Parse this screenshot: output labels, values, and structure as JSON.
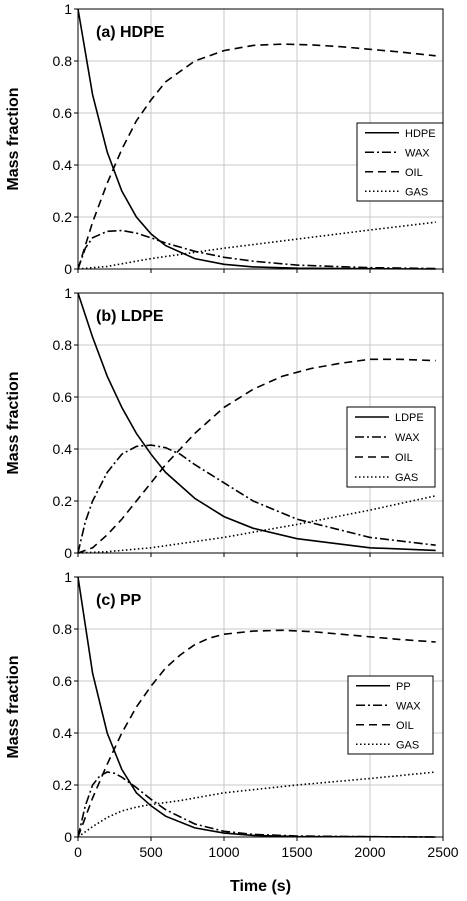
{
  "chart_data": [
    {
      "type": "line",
      "title": "(a) HDPE",
      "ylabel": "Mass fraction",
      "xlabel": "",
      "xlim": [
        0,
        2500
      ],
      "ylim": [
        0,
        1
      ],
      "xticks": [
        0,
        500,
        1000,
        1500,
        2000,
        2500
      ],
      "yticks": [
        0,
        0.2,
        0.4,
        0.6,
        0.8,
        1
      ],
      "ytick_labels": [
        "0",
        "0.2",
        "0.4",
        "0.6",
        "0.8",
        "1"
      ],
      "grid": true,
      "legend_position": "middle-right",
      "series": [
        {
          "name": "HDPE",
          "style": "solid",
          "x": [
            0,
            100,
            200,
            300,
            400,
            500,
            600,
            800,
            1000,
            1200,
            1500,
            2000,
            2450
          ],
          "y": [
            1.0,
            0.67,
            0.45,
            0.3,
            0.2,
            0.135,
            0.09,
            0.04,
            0.018,
            0.008,
            0.003,
            0.001,
            0.0
          ]
        },
        {
          "name": "WAX",
          "style": "dashdot",
          "x": [
            0,
            50,
            100,
            200,
            300,
            400,
            500,
            600,
            800,
            1000,
            1200,
            1500,
            2000,
            2450
          ],
          "y": [
            0.0,
            0.08,
            0.12,
            0.145,
            0.148,
            0.138,
            0.12,
            0.1,
            0.068,
            0.045,
            0.03,
            0.015,
            0.005,
            0.002
          ]
        },
        {
          "name": "OIL",
          "style": "dashed",
          "x": [
            0,
            100,
            200,
            300,
            400,
            500,
            600,
            700,
            800,
            1000,
            1200,
            1400,
            1600,
            1800,
            2000,
            2200,
            2450
          ],
          "y": [
            0.0,
            0.18,
            0.33,
            0.46,
            0.57,
            0.65,
            0.72,
            0.76,
            0.8,
            0.84,
            0.86,
            0.865,
            0.862,
            0.855,
            0.845,
            0.835,
            0.82
          ]
        },
        {
          "name": "GAS",
          "style": "dotted",
          "x": [
            0,
            200,
            500,
            1000,
            1500,
            2000,
            2450
          ],
          "y": [
            0.0,
            0.01,
            0.04,
            0.08,
            0.115,
            0.15,
            0.18
          ]
        }
      ]
    },
    {
      "type": "line",
      "title": "(b) LDPE",
      "ylabel": "Mass fraction",
      "xlabel": "",
      "xlim": [
        0,
        2500
      ],
      "ylim": [
        0,
        1
      ],
      "xticks": [
        0,
        500,
        1000,
        1500,
        2000,
        2500
      ],
      "yticks": [
        0,
        0.2,
        0.4,
        0.6,
        0.8,
        1
      ],
      "ytick_labels": [
        "0",
        "0.2",
        "0.4",
        "0.6",
        "0.8",
        "1"
      ],
      "grid": true,
      "legend_position": "middle-right",
      "series": [
        {
          "name": "LDPE",
          "style": "solid",
          "x": [
            0,
            100,
            200,
            300,
            400,
            500,
            600,
            800,
            1000,
            1200,
            1500,
            2000,
            2450
          ],
          "y": [
            1.0,
            0.83,
            0.68,
            0.56,
            0.46,
            0.38,
            0.31,
            0.21,
            0.14,
            0.095,
            0.055,
            0.02,
            0.01
          ]
        },
        {
          "name": "WAX",
          "style": "dashdot",
          "x": [
            0,
            50,
            100,
            200,
            300,
            400,
            500,
            600,
            700,
            800,
            1000,
            1200,
            1500,
            2000,
            2450
          ],
          "y": [
            0.0,
            0.12,
            0.2,
            0.31,
            0.38,
            0.41,
            0.415,
            0.405,
            0.38,
            0.34,
            0.27,
            0.2,
            0.13,
            0.06,
            0.03
          ]
        },
        {
          "name": "OIL",
          "style": "dashed",
          "x": [
            0,
            100,
            200,
            300,
            400,
            500,
            600,
            800,
            1000,
            1200,
            1400,
            1600,
            1800,
            2000,
            2200,
            2450
          ],
          "y": [
            0.0,
            0.02,
            0.07,
            0.13,
            0.2,
            0.27,
            0.34,
            0.46,
            0.56,
            0.63,
            0.68,
            0.71,
            0.73,
            0.745,
            0.745,
            0.74
          ]
        },
        {
          "name": "GAS",
          "style": "dotted",
          "x": [
            0,
            200,
            500,
            1000,
            1500,
            2000,
            2450
          ],
          "y": [
            0.0,
            0.005,
            0.02,
            0.06,
            0.11,
            0.165,
            0.22
          ]
        }
      ]
    },
    {
      "type": "line",
      "title": "(c) PP",
      "ylabel": "Mass fraction",
      "xlabel": "Time (s)",
      "xlim": [
        0,
        2500
      ],
      "ylim": [
        0,
        1
      ],
      "xticks": [
        0,
        500,
        1000,
        1500,
        2000,
        2500
      ],
      "yticks": [
        0,
        0.2,
        0.4,
        0.6,
        0.8,
        1
      ],
      "ytick_labels": [
        "0",
        "0.2",
        "0.4",
        "0.6",
        "0.8",
        "1"
      ],
      "grid": true,
      "legend_position": "middle-right",
      "series": [
        {
          "name": "PP",
          "style": "solid",
          "x": [
            0,
            100,
            200,
            300,
            400,
            500,
            600,
            800,
            1000,
            1200,
            1500,
            2000,
            2450
          ],
          "y": [
            1.0,
            0.63,
            0.4,
            0.26,
            0.17,
            0.12,
            0.08,
            0.035,
            0.015,
            0.006,
            0.002,
            0.001,
            0.0
          ]
        },
        {
          "name": "WAX",
          "style": "dashdot",
          "x": [
            0,
            50,
            100,
            150,
            200,
            250,
            300,
            400,
            500,
            600,
            800,
            1000,
            1200,
            1500,
            2000,
            2450
          ],
          "y": [
            0.0,
            0.12,
            0.2,
            0.235,
            0.25,
            0.245,
            0.23,
            0.19,
            0.145,
            0.105,
            0.05,
            0.022,
            0.01,
            0.004,
            0.001,
            0.0
          ]
        },
        {
          "name": "OIL",
          "style": "dashed",
          "x": [
            0,
            100,
            200,
            300,
            400,
            500,
            600,
            700,
            800,
            900,
            1000,
            1200,
            1400,
            1600,
            1800,
            2000,
            2200,
            2450
          ],
          "y": [
            0.0,
            0.15,
            0.28,
            0.4,
            0.5,
            0.58,
            0.65,
            0.7,
            0.74,
            0.765,
            0.78,
            0.792,
            0.795,
            0.79,
            0.78,
            0.77,
            0.76,
            0.75
          ]
        },
        {
          "name": "GAS",
          "style": "dotted",
          "x": [
            0,
            100,
            200,
            300,
            400,
            500,
            700,
            1000,
            1500,
            2000,
            2450
          ],
          "y": [
            0.0,
            0.04,
            0.075,
            0.1,
            0.115,
            0.125,
            0.14,
            0.17,
            0.2,
            0.225,
            0.25
          ]
        }
      ]
    }
  ]
}
